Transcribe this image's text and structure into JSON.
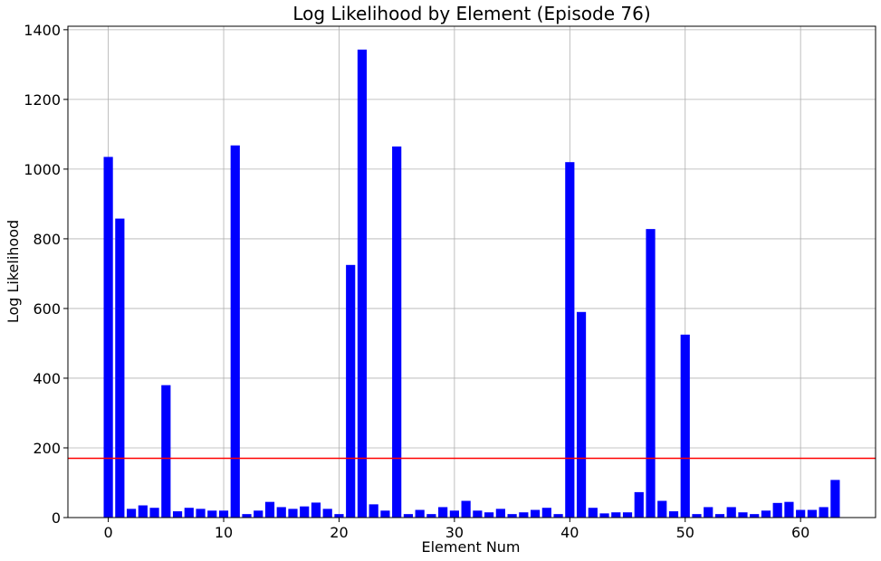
{
  "chart_data": {
    "type": "bar",
    "title": "Log Likelihood by Element (Episode 76)",
    "xlabel": "Element Num",
    "ylabel": "Log Likelihood",
    "x": [
      0,
      1,
      2,
      3,
      4,
      5,
      6,
      7,
      8,
      9,
      10,
      11,
      12,
      13,
      14,
      15,
      16,
      17,
      18,
      19,
      20,
      21,
      22,
      23,
      24,
      25,
      26,
      27,
      28,
      29,
      30,
      31,
      32,
      33,
      34,
      35,
      36,
      37,
      38,
      39,
      40,
      41,
      42,
      43,
      44,
      45,
      46,
      47,
      48,
      49,
      50,
      51,
      52,
      53,
      54,
      55,
      56,
      57,
      58,
      59,
      60,
      61,
      62,
      63
    ],
    "values": [
      1035,
      858,
      25,
      35,
      28,
      380,
      18,
      28,
      25,
      20,
      20,
      1068,
      10,
      20,
      45,
      30,
      25,
      32,
      43,
      25,
      10,
      725,
      1343,
      38,
      20,
      1065,
      10,
      22,
      10,
      30,
      20,
      48,
      20,
      15,
      25,
      10,
      15,
      22,
      28,
      10,
      1020,
      590,
      28,
      12,
      15,
      15,
      73,
      828,
      48,
      18,
      525,
      10,
      30,
      10,
      30,
      15,
      10,
      20,
      42,
      45,
      22,
      22,
      30,
      108
    ],
    "bar_color": "#0000ff",
    "threshold": {
      "value": 170,
      "color": "#ff0000"
    },
    "xlim": [
      -3.5,
      66.5
    ],
    "ylim": [
      0,
      1410
    ],
    "xticks": [
      0,
      10,
      20,
      30,
      40,
      50,
      60
    ],
    "yticks": [
      0,
      200,
      400,
      600,
      800,
      1000,
      1200,
      1400
    ],
    "grid": true,
    "legend": "none"
  }
}
